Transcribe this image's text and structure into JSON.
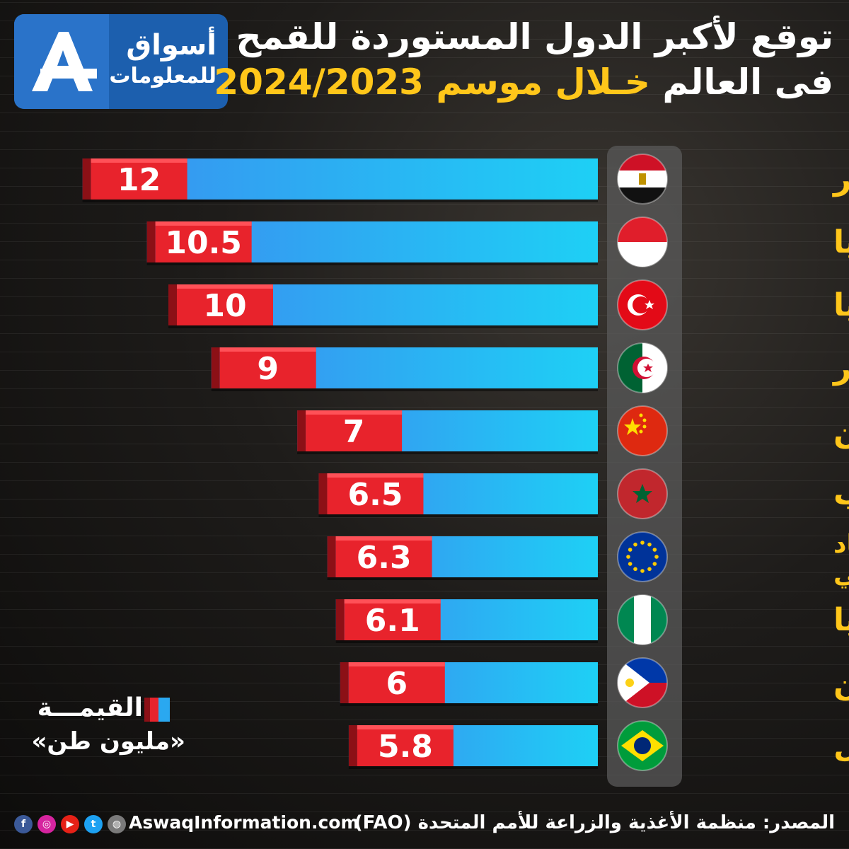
{
  "logo": {
    "line1": "أسواق",
    "line2": "للمعلومات"
  },
  "title": {
    "line1": "توقع لأكبر الدول المستوردة للقمح",
    "line2_prefix": "فى العالم ",
    "line2_highlight": "خـلال موسم 2024/2023"
  },
  "chart_data": {
    "type": "bar",
    "orientation": "horizontal",
    "categories": [
      "مصر",
      "إندونيسيا",
      "تركيا",
      "الجزائر",
      "الصين",
      "المغرب",
      "الاتحاد الأوروبي",
      "نيجيريا",
      "الفلبين",
      "البرازيل"
    ],
    "labels": [
      "12",
      "10.5",
      "10",
      "9",
      "7",
      "6.5",
      "6.3",
      "6.1",
      "6",
      "5.8"
    ],
    "values": [
      12,
      10.5,
      10,
      9,
      7,
      6.5,
      6.3,
      6.1,
      6,
      5.8
    ],
    "flags": [
      "egypt-flag",
      "indonesia-flag",
      "turkey-flag",
      "algeria-flag",
      "china-flag",
      "morocco-flag",
      "eu-flag",
      "nigeria-flag",
      "philippines-flag",
      "brazil-flag"
    ],
    "colors": {
      "bar": "#2aa8f0",
      "label_box": "#e8232c",
      "country_text": "#ffc61a"
    }
  },
  "legend": {
    "label": "القيمـــة",
    "unit": "«مليون طن»"
  },
  "footer": {
    "source": "المصدر: منظمة الأغذية والزراعة للأمم المتحدة (FAO)",
    "website": "AswaqInformation.com"
  }
}
